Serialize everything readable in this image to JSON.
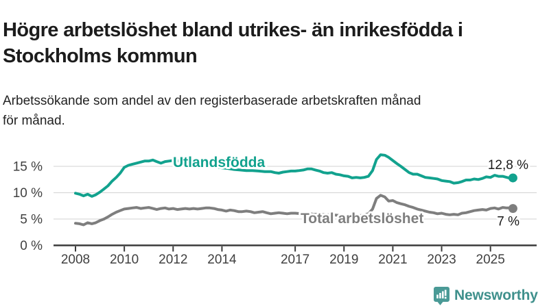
{
  "header": {
    "title_line1": "Högre arbetslöshet bland utrikes- än inrikesfödda i",
    "title_line2": "Stockholms kommun",
    "subtitle_line1": "Arbetssökande som andel av den registerbaserade arbetskraften månad",
    "subtitle_line2": "för månad."
  },
  "footer": {
    "brand": "Newsworthy"
  },
  "colors": {
    "accent_teal": "#12a28e",
    "series_gray": "#7e7e7e",
    "logo_teal": "#4a9a96",
    "logo_text_teal": "#3f908c",
    "axis_line": "#3a3a3a",
    "axis_text": "#404040",
    "grid": "#d9d9d9",
    "value_label_text": "#1a1a1a"
  },
  "chart_data": {
    "type": "line",
    "title": "Högre arbetslöshet bland utrikes- än inrikesfödda i Stockholms kommun",
    "subtitle": "Arbetssökande som andel av den registerbaserade arbetskraften månad för månad.",
    "xlabel": "",
    "ylabel": "",
    "grid": true,
    "legend_position": "inline-labels",
    "ylim": [
      0,
      18
    ],
    "xlim": [
      2007.1,
      2026.9
    ],
    "ytick_values": [
      0,
      5,
      10,
      15
    ],
    "ytick_labels": [
      "0 %",
      "5 %",
      "10 %",
      "15 %"
    ],
    "xtick_values": [
      2008,
      2010,
      2012,
      2014,
      2017,
      2019,
      2021,
      2023,
      2025
    ],
    "xtick_labels": [
      "2008",
      "2010",
      "2012",
      "2014",
      "2017",
      "2019",
      "2021",
      "2023",
      "2025"
    ],
    "series": [
      {
        "name": "Utlandsfödda",
        "color": "#12a28e",
        "end_label": "12,8 %",
        "end_value": 12.8,
        "points": [
          [
            2008.0,
            9.9
          ],
          [
            2008.17,
            9.7
          ],
          [
            2008.33,
            9.4
          ],
          [
            2008.5,
            9.7
          ],
          [
            2008.67,
            9.3
          ],
          [
            2008.83,
            9.6
          ],
          [
            2009.0,
            10.1
          ],
          [
            2009.17,
            10.7
          ],
          [
            2009.33,
            11.3
          ],
          [
            2009.5,
            12.2
          ],
          [
            2009.67,
            12.9
          ],
          [
            2009.83,
            13.7
          ],
          [
            2010.0,
            14.8
          ],
          [
            2010.17,
            15.2
          ],
          [
            2010.33,
            15.4
          ],
          [
            2010.5,
            15.6
          ],
          [
            2010.67,
            15.8
          ],
          [
            2010.83,
            16.0
          ],
          [
            2011.0,
            16.0
          ],
          [
            2011.17,
            16.2
          ],
          [
            2011.33,
            15.9
          ],
          [
            2011.5,
            15.6
          ],
          [
            2011.67,
            15.9
          ],
          [
            2011.83,
            16.0
          ],
          [
            2012.0,
            16.1
          ],
          [
            2012.25,
            16.0
          ],
          [
            2012.5,
            15.8
          ],
          [
            2012.75,
            15.6
          ],
          [
            2013.0,
            15.4
          ],
          [
            2013.25,
            15.2
          ],
          [
            2013.5,
            15.0
          ],
          [
            2013.75,
            14.9
          ],
          [
            2014.0,
            14.7
          ],
          [
            2014.25,
            14.6
          ],
          [
            2014.5,
            14.4
          ],
          [
            2014.75,
            14.3
          ],
          [
            2015.0,
            14.2
          ],
          [
            2015.25,
            14.2
          ],
          [
            2015.5,
            14.1
          ],
          [
            2015.75,
            14.0
          ],
          [
            2016.0,
            14.0
          ],
          [
            2016.17,
            13.8
          ],
          [
            2016.33,
            13.7
          ],
          [
            2016.5,
            13.9
          ],
          [
            2016.67,
            14.0
          ],
          [
            2016.83,
            14.1
          ],
          [
            2017.0,
            14.1
          ],
          [
            2017.17,
            14.2
          ],
          [
            2017.33,
            14.3
          ],
          [
            2017.5,
            14.5
          ],
          [
            2017.67,
            14.5
          ],
          [
            2017.83,
            14.3
          ],
          [
            2018.0,
            14.1
          ],
          [
            2018.17,
            13.8
          ],
          [
            2018.33,
            13.7
          ],
          [
            2018.5,
            13.8
          ],
          [
            2018.67,
            13.5
          ],
          [
            2018.83,
            13.4
          ],
          [
            2019.0,
            13.2
          ],
          [
            2019.17,
            13.1
          ],
          [
            2019.33,
            12.8
          ],
          [
            2019.5,
            12.9
          ],
          [
            2019.67,
            12.8
          ],
          [
            2019.83,
            12.9
          ],
          [
            2020.0,
            13.1
          ],
          [
            2020.17,
            14.2
          ],
          [
            2020.33,
            16.3
          ],
          [
            2020.5,
            17.2
          ],
          [
            2020.67,
            17.1
          ],
          [
            2020.83,
            16.7
          ],
          [
            2021.0,
            16.1
          ],
          [
            2021.17,
            15.5
          ],
          [
            2021.33,
            15.0
          ],
          [
            2021.5,
            14.4
          ],
          [
            2021.67,
            13.8
          ],
          [
            2021.83,
            13.5
          ],
          [
            2022.0,
            13.5
          ],
          [
            2022.17,
            13.2
          ],
          [
            2022.33,
            12.9
          ],
          [
            2022.5,
            12.8
          ],
          [
            2022.67,
            12.7
          ],
          [
            2022.83,
            12.6
          ],
          [
            2023.0,
            12.3
          ],
          [
            2023.17,
            12.2
          ],
          [
            2023.33,
            12.1
          ],
          [
            2023.5,
            11.8
          ],
          [
            2023.67,
            11.9
          ],
          [
            2023.83,
            12.1
          ],
          [
            2024.0,
            12.4
          ],
          [
            2024.17,
            12.4
          ],
          [
            2024.33,
            12.6
          ],
          [
            2024.5,
            12.5
          ],
          [
            2024.67,
            12.7
          ],
          [
            2024.83,
            13.0
          ],
          [
            2025.0,
            12.9
          ],
          [
            2025.17,
            13.3
          ],
          [
            2025.33,
            13.1
          ],
          [
            2025.5,
            13.1
          ],
          [
            2025.67,
            12.9
          ],
          [
            2025.83,
            12.7
          ],
          [
            2025.92,
            12.8
          ]
        ]
      },
      {
        "name": "Total arbetslöshet",
        "color": "#7e7e7e",
        "end_label": "7 %",
        "end_value": 7.0,
        "points": [
          [
            2008.0,
            4.2
          ],
          [
            2008.17,
            4.1
          ],
          [
            2008.33,
            3.9
          ],
          [
            2008.5,
            4.3
          ],
          [
            2008.67,
            4.1
          ],
          [
            2008.83,
            4.3
          ],
          [
            2009.0,
            4.7
          ],
          [
            2009.17,
            5.0
          ],
          [
            2009.33,
            5.4
          ],
          [
            2009.5,
            5.9
          ],
          [
            2009.67,
            6.3
          ],
          [
            2009.83,
            6.6
          ],
          [
            2010.0,
            6.9
          ],
          [
            2010.17,
            7.0
          ],
          [
            2010.33,
            7.1
          ],
          [
            2010.5,
            7.2
          ],
          [
            2010.67,
            7.0
          ],
          [
            2010.83,
            7.1
          ],
          [
            2011.0,
            7.2
          ],
          [
            2011.17,
            7.0
          ],
          [
            2011.33,
            6.8
          ],
          [
            2011.5,
            7.0
          ],
          [
            2011.67,
            7.1
          ],
          [
            2011.83,
            6.9
          ],
          [
            2012.0,
            7.0
          ],
          [
            2012.17,
            6.8
          ],
          [
            2012.33,
            6.9
          ],
          [
            2012.5,
            7.0
          ],
          [
            2012.67,
            6.9
          ],
          [
            2012.83,
            7.0
          ],
          [
            2013.0,
            6.9
          ],
          [
            2013.17,
            7.0
          ],
          [
            2013.33,
            7.1
          ],
          [
            2013.5,
            7.1
          ],
          [
            2013.67,
            7.0
          ],
          [
            2013.83,
            6.8
          ],
          [
            2014.0,
            6.7
          ],
          [
            2014.17,
            6.5
          ],
          [
            2014.33,
            6.7
          ],
          [
            2014.5,
            6.6
          ],
          [
            2014.67,
            6.4
          ],
          [
            2014.83,
            6.4
          ],
          [
            2015.0,
            6.5
          ],
          [
            2015.17,
            6.4
          ],
          [
            2015.33,
            6.2
          ],
          [
            2015.5,
            6.3
          ],
          [
            2015.67,
            6.4
          ],
          [
            2015.83,
            6.2
          ],
          [
            2016.0,
            6.0
          ],
          [
            2016.17,
            6.1
          ],
          [
            2016.33,
            6.2
          ],
          [
            2016.5,
            6.1
          ],
          [
            2016.67,
            6.0
          ],
          [
            2016.83,
            6.1
          ],
          [
            2017.0,
            6.1
          ],
          [
            2017.25,
            6.0
          ],
          [
            2017.5,
            6.1
          ],
          [
            2017.75,
            5.9
          ],
          [
            2018.0,
            5.9
          ],
          [
            2018.25,
            5.8
          ],
          [
            2018.5,
            5.8
          ],
          [
            2018.75,
            5.7
          ],
          [
            2019.0,
            5.7
          ],
          [
            2019.25,
            5.6
          ],
          [
            2019.5,
            5.6
          ],
          [
            2019.75,
            5.7
          ],
          [
            2020.0,
            6.0
          ],
          [
            2020.17,
            6.9
          ],
          [
            2020.33,
            8.9
          ],
          [
            2020.5,
            9.5
          ],
          [
            2020.67,
            9.2
          ],
          [
            2020.83,
            8.4
          ],
          [
            2021.0,
            8.5
          ],
          [
            2021.17,
            8.1
          ],
          [
            2021.33,
            7.9
          ],
          [
            2021.5,
            7.7
          ],
          [
            2021.67,
            7.4
          ],
          [
            2021.83,
            7.2
          ],
          [
            2022.0,
            6.9
          ],
          [
            2022.17,
            6.7
          ],
          [
            2022.33,
            6.5
          ],
          [
            2022.5,
            6.3
          ],
          [
            2022.67,
            6.2
          ],
          [
            2022.83,
            6.0
          ],
          [
            2023.0,
            6.1
          ],
          [
            2023.17,
            5.9
          ],
          [
            2023.33,
            5.8
          ],
          [
            2023.5,
            5.9
          ],
          [
            2023.67,
            5.8
          ],
          [
            2023.83,
            6.1
          ],
          [
            2024.0,
            6.2
          ],
          [
            2024.17,
            6.4
          ],
          [
            2024.33,
            6.6
          ],
          [
            2024.5,
            6.7
          ],
          [
            2024.67,
            6.8
          ],
          [
            2024.83,
            6.7
          ],
          [
            2025.0,
            7.0
          ],
          [
            2025.17,
            7.1
          ],
          [
            2025.33,
            6.9
          ],
          [
            2025.5,
            7.2
          ],
          [
            2025.67,
            7.1
          ],
          [
            2025.83,
            7.1
          ],
          [
            2025.92,
            7.0
          ]
        ]
      }
    ]
  }
}
